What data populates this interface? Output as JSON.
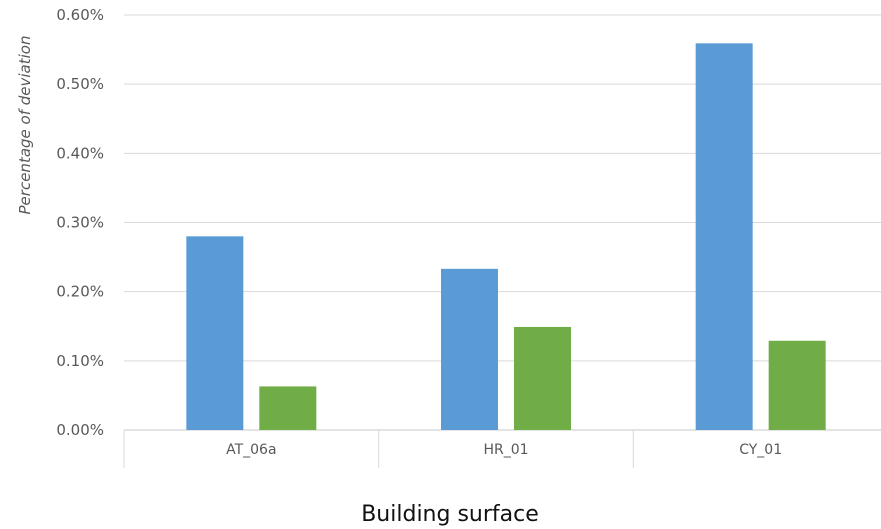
{
  "chart_data": {
    "type": "bar",
    "title": "",
    "xlabel": "Building surface",
    "ylabel": "Percentage of deviation",
    "categories": [
      "AT_06a",
      "HR_01",
      "CY_01"
    ],
    "series": [
      {
        "values": [
          0.28,
          0.233,
          0.559
        ],
        "color": "#5B9BD5"
      },
      {
        "values": [
          0.063,
          0.149,
          0.129
        ],
        "color": "#70AD47"
      }
    ],
    "ylim": [
      0,
      0.6
    ],
    "y_ticks": [
      {
        "value": 0.0,
        "label": "0.00%"
      },
      {
        "value": 0.1,
        "label": "0.10%"
      },
      {
        "value": 0.2,
        "label": "0.20%"
      },
      {
        "value": 0.3,
        "label": "0.30%"
      },
      {
        "value": 0.4,
        "label": "0.40%"
      },
      {
        "value": 0.5,
        "label": "0.50%"
      },
      {
        "value": 0.6,
        "label": "0.60%"
      }
    ],
    "grid": true,
    "legend": "none"
  }
}
